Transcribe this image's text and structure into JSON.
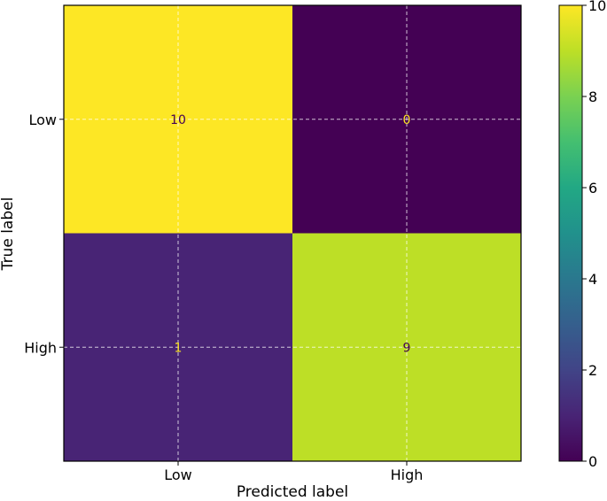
{
  "chart_data": {
    "type": "heatmap",
    "title": "",
    "xlabel": "Predicted label",
    "ylabel": "True label",
    "x_categories": [
      "Low",
      "High"
    ],
    "y_categories": [
      "Low",
      "High"
    ],
    "matrix": [
      [
        10,
        0
      ],
      [
        1,
        9
      ]
    ],
    "colormap": "viridis",
    "colorbar": {
      "min": 0,
      "max": 10,
      "ticks": [
        "0",
        "2",
        "4",
        "6",
        "8",
        "10"
      ]
    },
    "grid": true,
    "colors": {
      "low_end": "#440154",
      "high_end": "#fde725",
      "light_text": "#fde725",
      "dark_text": "#440154"
    }
  }
}
